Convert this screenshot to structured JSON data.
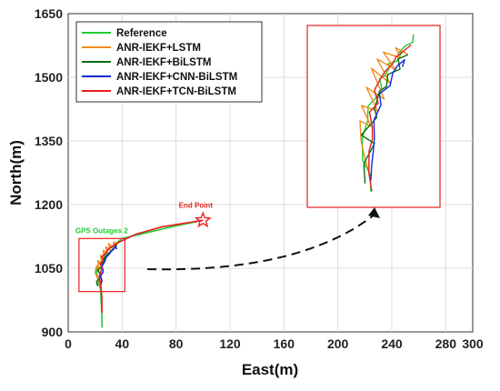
{
  "chart_data": {
    "type": "line",
    "xlabel": "East(m)",
    "ylabel": "North(m)",
    "xlim": [
      0,
      300
    ],
    "ylim": [
      900,
      1650
    ],
    "xticks": [
      0,
      40,
      80,
      120,
      160,
      200,
      240,
      280,
      300
    ],
    "xtick_labels": [
      "0",
      "40",
      "80",
      "120",
      "160",
      "200",
      "240",
      "280",
      "300"
    ],
    "yticks": [
      900,
      1050,
      1200,
      1350,
      1500,
      1650
    ],
    "ytick_labels": [
      "900",
      "1050",
      "1200",
      "1350",
      "1500",
      "1650"
    ],
    "grid": true,
    "legend_position": "top-left",
    "series": [
      {
        "name": "Reference",
        "color": "#22cc33",
        "x": [
          25,
          25,
          24.5,
          24,
          23,
          22,
          21,
          22,
          24,
          26,
          27,
          28,
          29,
          30,
          31,
          33,
          34,
          35,
          36,
          38,
          40,
          60,
          80,
          100
        ],
        "y": [
          910,
          940,
          970,
          1000,
          1012,
          1025,
          1040,
          1055,
          1065,
          1072,
          1080,
          1085,
          1090,
          1095,
          1098,
          1100,
          1105,
          1108,
          1110,
          1115,
          1120,
          1135,
          1150,
          1163
        ]
      },
      {
        "name": "ANR-IEKF+LSTM",
        "color": "#f08c1e",
        "x": [
          24,
          22,
          20,
          21,
          23,
          22,
          25,
          24,
          27,
          26,
          29,
          28,
          31,
          30,
          33,
          34,
          36
        ],
        "y": [
          1012,
          1025,
          1040,
          1055,
          1048,
          1068,
          1060,
          1080,
          1072,
          1092,
          1085,
          1100,
          1093,
          1108,
          1100,
          1112,
          1104
        ]
      },
      {
        "name": "ANR-IEKF+BiLSTM",
        "color": "#0a6e14",
        "x": [
          22,
          21,
          23,
          24,
          22,
          25,
          26,
          27,
          29,
          31,
          33,
          35,
          36
        ],
        "y": [
          1008,
          1018,
          1025,
          1035,
          1045,
          1055,
          1065,
          1075,
          1082,
          1088,
          1095,
          1100,
          1106
        ]
      },
      {
        "name": "ANR-IEKF+CNN-BiLSTM",
        "color": "#1428dc",
        "x": [
          24,
          25,
          24,
          26,
          25,
          27,
          28,
          30,
          32,
          34,
          35,
          36
        ],
        "y": [
          1010,
          1020,
          1032,
          1042,
          1055,
          1065,
          1075,
          1082,
          1090,
          1096,
          1102,
          1095
        ]
      },
      {
        "name": "ANR-IEKF+TCN-BiLSTM",
        "color": "#e61e1e",
        "x": [
          25,
          25,
          24.5,
          24,
          23,
          24,
          25,
          24,
          26,
          25,
          28,
          29,
          31,
          33,
          35,
          38,
          50,
          70,
          100
        ],
        "y": [
          945,
          980,
          1000,
          1015,
          1030,
          1040,
          1050,
          1060,
          1068,
          1078,
          1085,
          1092,
          1098,
          1102,
          1106,
          1112,
          1130,
          1148,
          1163
        ]
      }
    ],
    "annotations": [
      {
        "text": "End Point",
        "x": 100,
        "y": 1163,
        "color": "#e61e1e",
        "marker": "star"
      },
      {
        "text": "GPS Outages 2",
        "color": "#22cc33"
      }
    ],
    "inset": {
      "description": "zoomed view of GPS outage region",
      "source_box_x": [
        8,
        42
      ],
      "source_box_y": [
        995,
        1120
      ]
    }
  }
}
